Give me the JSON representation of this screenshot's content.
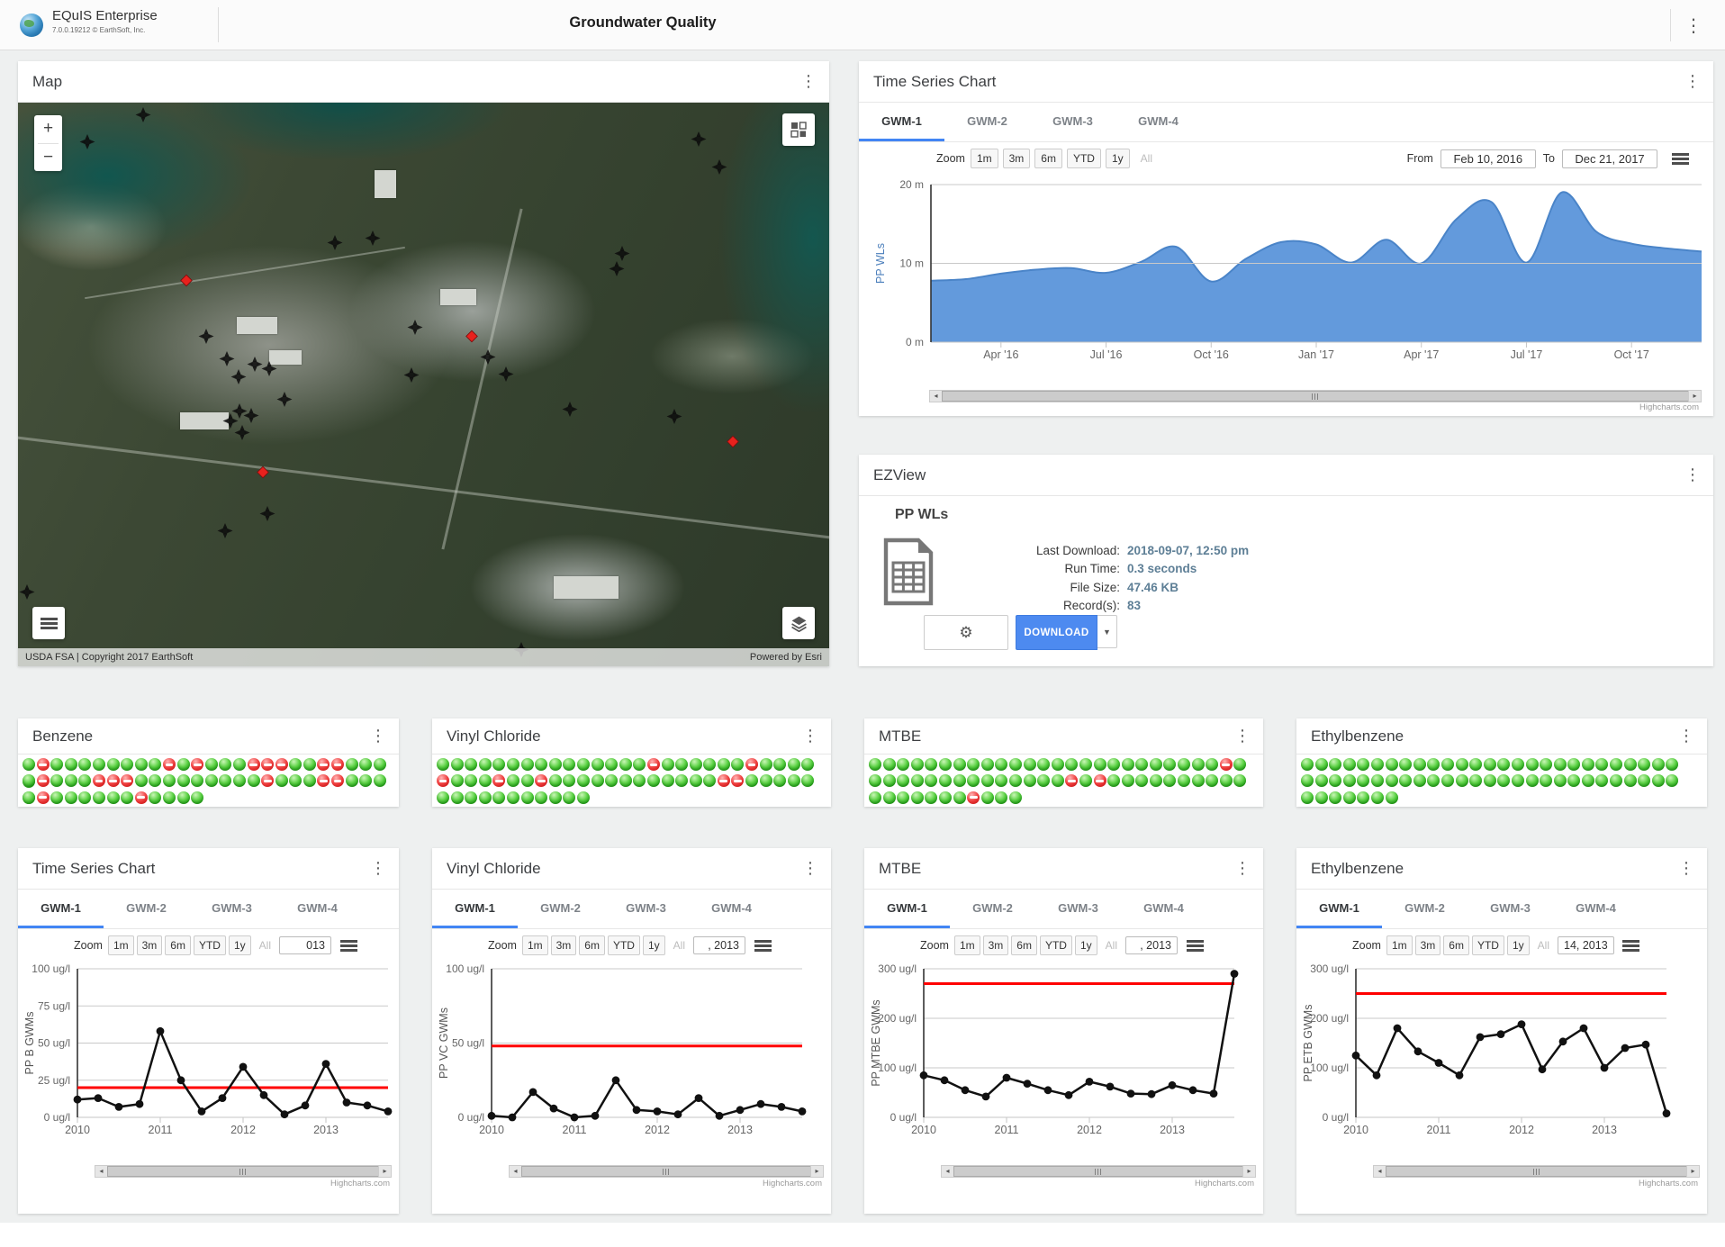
{
  "ui": {
    "kebab": "⋮",
    "caret_down": "▼",
    "scroll_left": "◂",
    "scroll_right": "▸",
    "gear": "⚙",
    "zoom_in": "+",
    "zoom_out": "−"
  },
  "header": {
    "app_name": "EQuIS Enterprise",
    "app_version": "7.0.0.19212 © EarthSoft, Inc.",
    "page_title": "Groundwater Quality"
  },
  "map": {
    "title": "Map",
    "attribution_left": "USDA FSA | Copyright 2017 EarthSoft",
    "attribution_right": "Powered by Esri",
    "well_markers": [
      [
        8.6,
        7.4
      ],
      [
        15.4,
        2.5
      ],
      [
        43.7,
        24.5
      ],
      [
        39.1,
        25.2
      ],
      [
        83.9,
        6.8
      ],
      [
        86.5,
        11.8
      ],
      [
        23.2,
        41.9
      ],
      [
        25.8,
        45.8
      ],
      [
        27.2,
        49.1
      ],
      [
        29.2,
        46.8
      ],
      [
        31.0,
        47.6
      ],
      [
        32.8,
        53.0
      ],
      [
        27.3,
        55.1
      ],
      [
        28.8,
        55.9
      ],
      [
        26.2,
        56.9
      ],
      [
        27.6,
        59.0
      ],
      [
        48.5,
        48.7
      ],
      [
        48.9,
        40.2
      ],
      [
        57.9,
        45.6
      ],
      [
        60.2,
        48.5
      ],
      [
        73.8,
        29.9
      ],
      [
        74.5,
        27.2
      ],
      [
        30.7,
        73.4
      ],
      [
        25.5,
        76.3
      ],
      [
        1.1,
        87.2
      ],
      [
        62.0,
        97.5
      ],
      [
        68.0,
        54.8
      ],
      [
        80.9,
        56.1
      ]
    ],
    "alert_markers": [
      [
        20.8,
        32.0
      ],
      [
        55.9,
        41.9
      ],
      [
        30.2,
        66.0
      ],
      [
        88.1,
        60.6
      ]
    ]
  },
  "time_series_top": {
    "title": "Time Series Chart",
    "tabs": [
      "GWM-1",
      "GWM-2",
      "GWM-3",
      "GWM-4"
    ],
    "active_tab": "GWM-1",
    "zoom_label": "Zoom",
    "zoom_buttons": [
      "1m",
      "3m",
      "6m",
      "YTD",
      "1y"
    ],
    "zoom_all": "All",
    "from_label": "From",
    "from_value": "Feb 10, 2016",
    "to_label": "To",
    "to_value": "Dec 21, 2017",
    "credits": "Highcharts.com"
  },
  "ezview": {
    "title": "EZView",
    "report_name": "PP WLs",
    "fields": [
      {
        "label": "Last Download:",
        "value": "2018-09-07, 12:50 pm"
      },
      {
        "label": "Run Time:",
        "value": "0.3 seconds"
      },
      {
        "label": "File Size:",
        "value": "47.46 KB"
      },
      {
        "label": "Record(s):",
        "value": "83"
      }
    ],
    "download_label": "DOWNLOAD"
  },
  "status_widgets": [
    {
      "title": "Benzene",
      "rows": [
        "grggggggggrgrgggrrrggrrgggg",
        "grgggrrrgggggggggrgggrrgggg",
        "grggggggrgggg"
      ]
    },
    {
      "title": "Vinyl Chloride",
      "rows": [
        "gggggggggggggggrggggggrgggg",
        "rgggrggrggggggggggggrrggggg",
        "ggggggggggg"
      ]
    },
    {
      "title": "MTBE",
      "rows": [
        "gggggggggggggggggggggggggrg",
        "ggggggggggggggrgrgggggggggg",
        "gggggggrggg"
      ]
    },
    {
      "title": "Ethylbenzene",
      "rows": [
        "ggggggggggggggggggggggggggg",
        "ggggggggggggggggggggggggggg",
        "ggggggg"
      ]
    }
  ],
  "bottom_charts": [
    {
      "title": "Time Series Chart",
      "tabs": [
        "GWM-1",
        "GWM-2",
        "GWM-3",
        "GWM-4"
      ],
      "active_tab": "GWM-1",
      "zoom_label": "Zoom",
      "zoom_buttons": [
        "1m",
        "3m",
        "6m",
        "YTD",
        "1y"
      ],
      "zoom_all": "All",
      "date_fragment": "013",
      "credits": "Highcharts.com"
    },
    {
      "title": "Vinyl Chloride",
      "tabs": [
        "GWM-1",
        "GWM-2",
        "GWM-3",
        "GWM-4"
      ],
      "active_tab": "GWM-1",
      "zoom_label": "Zoom",
      "zoom_buttons": [
        "1m",
        "3m",
        "6m",
        "YTD",
        "1y"
      ],
      "zoom_all": "All",
      "date_fragment": ", 2013",
      "credits": "Highcharts.com"
    },
    {
      "title": "MTBE",
      "tabs": [
        "GWM-1",
        "GWM-2",
        "GWM-3",
        "GWM-4"
      ],
      "active_tab": "GWM-1",
      "zoom_label": "Zoom",
      "zoom_buttons": [
        "1m",
        "3m",
        "6m",
        "YTD",
        "1y"
      ],
      "zoom_all": "All",
      "date_fragment": ", 2013",
      "credits": "Highcharts.com"
    },
    {
      "title": "Ethylbenzene",
      "tabs": [
        "GWM-1",
        "GWM-2",
        "GWM-3",
        "GWM-4"
      ],
      "active_tab": "GWM-1",
      "zoom_label": "Zoom",
      "zoom_buttons": [
        "1m",
        "3m",
        "6m",
        "YTD",
        "1y"
      ],
      "zoom_all": "All",
      "date_fragment": "14, 2013",
      "credits": "Highcharts.com"
    }
  ],
  "chart_data": [
    {
      "target": "chart-top",
      "type": "area",
      "series_name": "PP WLs",
      "color": "#5b95da",
      "line_color": "#4a84c8",
      "ylabel": "PP WLs",
      "ylabel_color": "#4a7ebb",
      "ylim": [
        0,
        20
      ],
      "y_ticks": [
        {
          "value": 0,
          "label": "0 m"
        },
        {
          "value": 10,
          "label": "10 m"
        },
        {
          "value": 20,
          "label": "20 m"
        }
      ],
      "x_desc": "monthly, Feb 2016 - Dec 2017",
      "x_ticks": [
        {
          "index": 2,
          "label": "Apr '16"
        },
        {
          "index": 5,
          "label": "Jul '16"
        },
        {
          "index": 8,
          "label": "Oct '16"
        },
        {
          "index": 11,
          "label": "Jan '17"
        },
        {
          "index": 14,
          "label": "Apr '17"
        },
        {
          "index": 17,
          "label": "Jul '17"
        },
        {
          "index": 20,
          "label": "Oct '17"
        }
      ],
      "values": [
        7.8,
        8.0,
        8.7,
        9.2,
        9.4,
        8.8,
        10.2,
        12.1,
        7.7,
        10.6,
        12.7,
        12.4,
        10.1,
        13.0,
        10.0,
        15.6,
        17.8,
        10.1,
        19.0,
        14.0,
        12.5,
        11.9,
        11.5
      ]
    },
    {
      "target": "chart-benzene",
      "type": "line",
      "series_name": "PP B GWMs",
      "threshold": 20,
      "threshold_color": "#ff0000",
      "ylabel": "PP B GWMs",
      "ylabel_color": "#555555",
      "ylim": [
        0,
        100
      ],
      "y_ticks": [
        {
          "value": 0,
          "label": "0 ug/l"
        },
        {
          "value": 25,
          "label": "25 ug/l"
        },
        {
          "value": 50,
          "label": "50 ug/l"
        },
        {
          "value": 75,
          "label": "75 ug/l"
        },
        {
          "value": 100,
          "label": "100 ug/l"
        }
      ],
      "x_desc": "quarterly, 2010 - 2013",
      "x_ticks": [
        {
          "index": 0,
          "label": "2010"
        },
        {
          "index": 4,
          "label": "2011"
        },
        {
          "index": 8,
          "label": "2012"
        },
        {
          "index": 12,
          "label": "2013"
        }
      ],
      "values": [
        12,
        13,
        7,
        9,
        58,
        25,
        4,
        13,
        34,
        15,
        2,
        8,
        36,
        10,
        8,
        4
      ]
    },
    {
      "target": "chart-vc",
      "type": "line",
      "series_name": "PP VC GWMs",
      "threshold": 48,
      "threshold_color": "#ff0000",
      "ylabel": "PP VC GWMs",
      "ylabel_color": "#555555",
      "ylim": [
        0,
        100
      ],
      "y_ticks": [
        {
          "value": 0,
          "label": "0 ug/l"
        },
        {
          "value": 50,
          "label": "50 ug/l"
        },
        {
          "value": 100,
          "label": "100 ug/l"
        }
      ],
      "x_desc": "quarterly, 2010 - 2013",
      "x_ticks": [
        {
          "index": 0,
          "label": "2010"
        },
        {
          "index": 4,
          "label": "2011"
        },
        {
          "index": 8,
          "label": "2012"
        },
        {
          "index": 12,
          "label": "2013"
        }
      ],
      "values": [
        1,
        0,
        17,
        6,
        0,
        1,
        25,
        5,
        4,
        2,
        13,
        1,
        5,
        9,
        7,
        4
      ]
    },
    {
      "target": "chart-mtbe",
      "type": "line",
      "series_name": "PP MTBE GWMs",
      "threshold": 270,
      "threshold_color": "#ff0000",
      "ylabel": "PP MTBE GWMs",
      "ylabel_color": "#555555",
      "ylim": [
        0,
        300
      ],
      "y_ticks": [
        {
          "value": 0,
          "label": "0 ug/l"
        },
        {
          "value": 100,
          "label": "100 ug/l"
        },
        {
          "value": 200,
          "label": "200 ug/l"
        },
        {
          "value": 300,
          "label": "300 ug/l"
        }
      ],
      "x_desc": "quarterly, 2010 - 2013",
      "x_ticks": [
        {
          "index": 0,
          "label": "2010"
        },
        {
          "index": 4,
          "label": "2011"
        },
        {
          "index": 8,
          "label": "2012"
        },
        {
          "index": 12,
          "label": "2013"
        }
      ],
      "values": [
        85,
        75,
        55,
        42,
        80,
        68,
        55,
        45,
        72,
        62,
        48,
        47,
        65,
        55,
        48,
        290
      ]
    },
    {
      "target": "chart-etb",
      "type": "line",
      "series_name": "PP ETB GWMs",
      "threshold": 250,
      "threshold_color": "#ff0000",
      "ylabel": "PP ETB GWMs",
      "ylabel_color": "#555555",
      "ylim": [
        0,
        300
      ],
      "y_ticks": [
        {
          "value": 0,
          "label": "0 ug/l"
        },
        {
          "value": 100,
          "label": "100 ug/l"
        },
        {
          "value": 200,
          "label": "200 ug/l"
        },
        {
          "value": 300,
          "label": "300 ug/l"
        }
      ],
      "x_desc": "quarterly, 2010 - 2013",
      "x_ticks": [
        {
          "index": 0,
          "label": "2010"
        },
        {
          "index": 4,
          "label": "2011"
        },
        {
          "index": 8,
          "label": "2012"
        },
        {
          "index": 12,
          "label": "2013"
        }
      ],
      "values": [
        125,
        85,
        180,
        133,
        110,
        85,
        162,
        168,
        188,
        97,
        153,
        180,
        100,
        140,
        147,
        8
      ]
    }
  ]
}
